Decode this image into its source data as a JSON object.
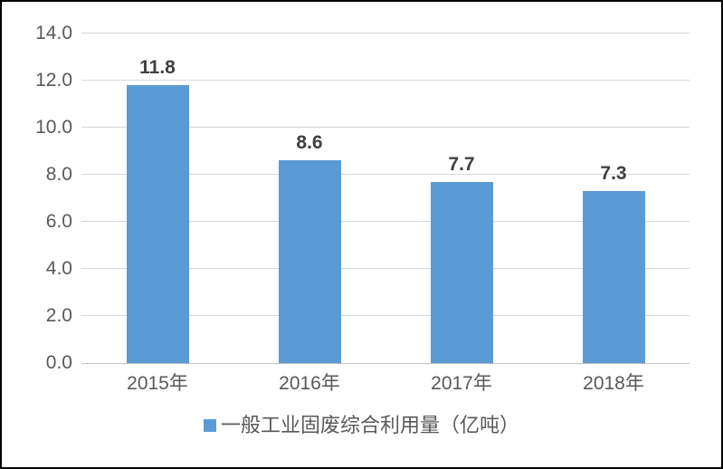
{
  "chart_data": {
    "type": "bar",
    "categories": [
      "2015年",
      "2016年",
      "2017年",
      "2018年"
    ],
    "values": [
      11.8,
      8.6,
      7.7,
      7.3
    ],
    "data_labels": [
      "11.8",
      "8.6",
      "7.7",
      "7.3"
    ],
    "series_name": "一般工业固废综合利用量（亿吨）",
    "title": "",
    "xlabel": "",
    "ylabel": "",
    "ylim": [
      0,
      14
    ],
    "ytick_step": 2,
    "ytick_labels": [
      "0.0",
      "2.0",
      "4.0",
      "6.0",
      "8.0",
      "10.0",
      "12.0",
      "14.0"
    ],
    "grid": true,
    "legend_position": "bottom",
    "colors": {
      "bar": "#5B9BD5",
      "gridline": "#D9D9D9",
      "axis_line": "#BFBFBF",
      "axis_text": "#595959",
      "data_label_text": "#404040"
    }
  }
}
